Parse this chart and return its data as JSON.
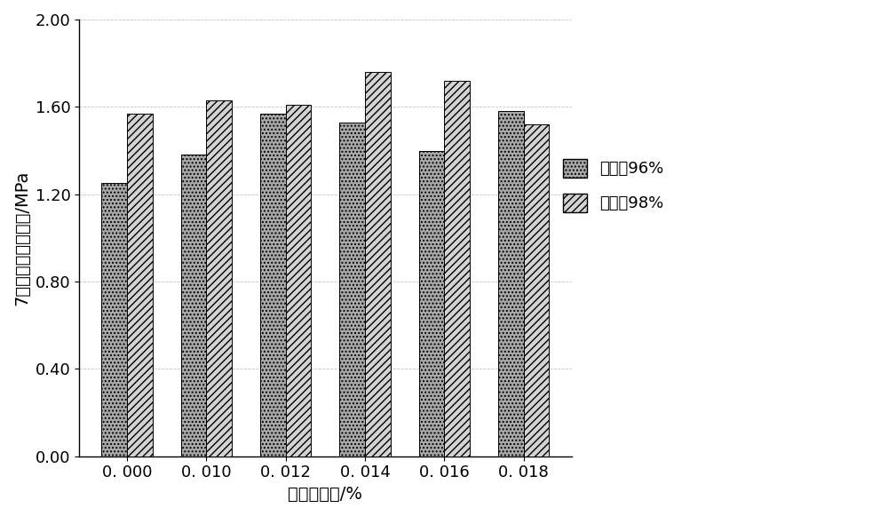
{
  "categories": [
    "0. 000",
    "0. 010",
    "0. 012",
    "0. 014",
    "0. 016",
    "0. 018"
  ],
  "xtick_labels": [
    "0. 000",
    "0. 010",
    "0. 012",
    "0. 014",
    "0. 016",
    "0. 018"
  ],
  "values_96": [
    1.25,
    1.38,
    1.57,
    1.53,
    1.4,
    1.58
  ],
  "values_98": [
    1.57,
    1.63,
    1.61,
    1.76,
    1.72,
    1.52
  ],
  "xlabel": "固化剂渗量/%",
  "ylabel": "7天无侧限抗压强度/MPa",
  "legend_96": "压实度96%",
  "legend_98": "压实度98%",
  "ylim": [
    0.0,
    2.0
  ],
  "yticks": [
    0.0,
    0.4,
    0.8,
    1.2,
    1.6,
    2.0
  ],
  "bar_width": 0.32,
  "background_color": "#ffffff",
  "grid_color": "#aaaaaa",
  "label_fontsize": 14,
  "tick_fontsize": 13,
  "legend_fontsize": 13
}
